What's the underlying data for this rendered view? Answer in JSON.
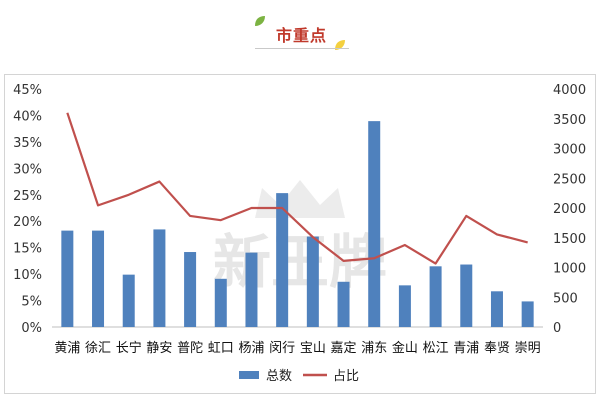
{
  "header": {
    "title": "市重点",
    "accent_color": "#c0392b",
    "leaf_colors": [
      "#7cb342",
      "#f4d03f"
    ]
  },
  "watermark": {
    "text": "新王牌",
    "icon": "crown-icon"
  },
  "chart_data": {
    "type": "bar",
    "categories": [
      "黄浦",
      "徐汇",
      "长宁",
      "静安",
      "普陀",
      "虹口",
      "杨浦",
      "闵行",
      "宝山",
      "嘉定",
      "浦东",
      "金山",
      "松江",
      "青浦",
      "奉贤",
      "崇明"
    ],
    "series": [
      {
        "name": "总数",
        "type": "bar",
        "axis": "right",
        "color": "#4f81bd",
        "values": [
          1620,
          1620,
          880,
          1640,
          1260,
          810,
          1250,
          2250,
          1520,
          760,
          3460,
          700,
          1020,
          1050,
          600,
          430
        ]
      },
      {
        "name": "占比",
        "type": "line",
        "axis": "left",
        "color": "#c0504d",
        "values": [
          40.5,
          23.0,
          25.0,
          27.5,
          21.0,
          20.2,
          22.5,
          22.5,
          17.0,
          12.5,
          13.0,
          15.5,
          12.0,
          21.0,
          17.5,
          16.0
        ]
      }
    ],
    "y_left": {
      "ylim": [
        0,
        45
      ],
      "ticks": [
        "0%",
        "5%",
        "10%",
        "15%",
        "20%",
        "25%",
        "30%",
        "35%",
        "40%",
        "45%"
      ]
    },
    "y_right": {
      "ylim": [
        0,
        4000
      ],
      "ticks": [
        "0",
        "500",
        "1000",
        "1500",
        "2000",
        "2500",
        "3000",
        "3500",
        "4000"
      ]
    },
    "grid": false,
    "legend": {
      "position": "bottom",
      "entries": [
        "总数",
        "占比"
      ]
    }
  }
}
